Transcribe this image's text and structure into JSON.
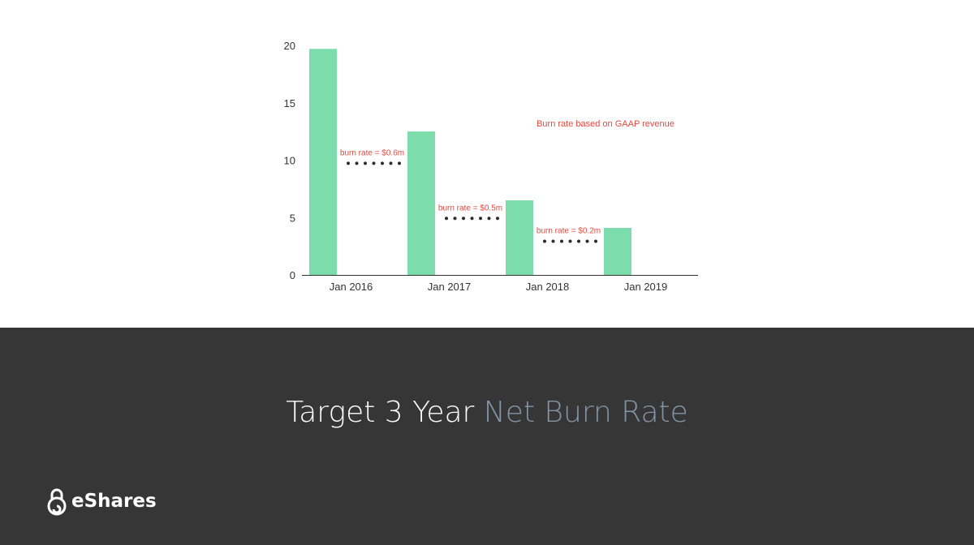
{
  "slide": {
    "title_plain": "Target 3 Year ",
    "title_accent": "Net Burn Rate",
    "brand": "eShares",
    "brand_icon": "lock-icon"
  },
  "colors": {
    "bar": "#7ddcab",
    "annotation": "#e8493f",
    "dots": "#2b2b2b",
    "footer_bg": "#363636",
    "title_accent": "#8395a7"
  },
  "chart_data": {
    "type": "bar",
    "categories": [
      "Jan 2016",
      "Jan 2017",
      "Jan 2018",
      "Jan 2019"
    ],
    "values": [
      19.7,
      12.5,
      6.5,
      4.1
    ],
    "ylim": [
      0,
      20
    ],
    "yticks": [
      0,
      5,
      10,
      15,
      20
    ],
    "grid": false,
    "annotations": [
      {
        "text": "burn rate = $0.6m",
        "between": [
          0,
          1
        ],
        "y": 9.8
      },
      {
        "text": "burn rate = $0.5m",
        "between": [
          1,
          2
        ],
        "y": 5.0
      },
      {
        "text": "burn rate = $0.2m",
        "between": [
          2,
          3
        ],
        "y": 3.0
      }
    ],
    "note": "Burn rate based on GAAP revenue"
  }
}
